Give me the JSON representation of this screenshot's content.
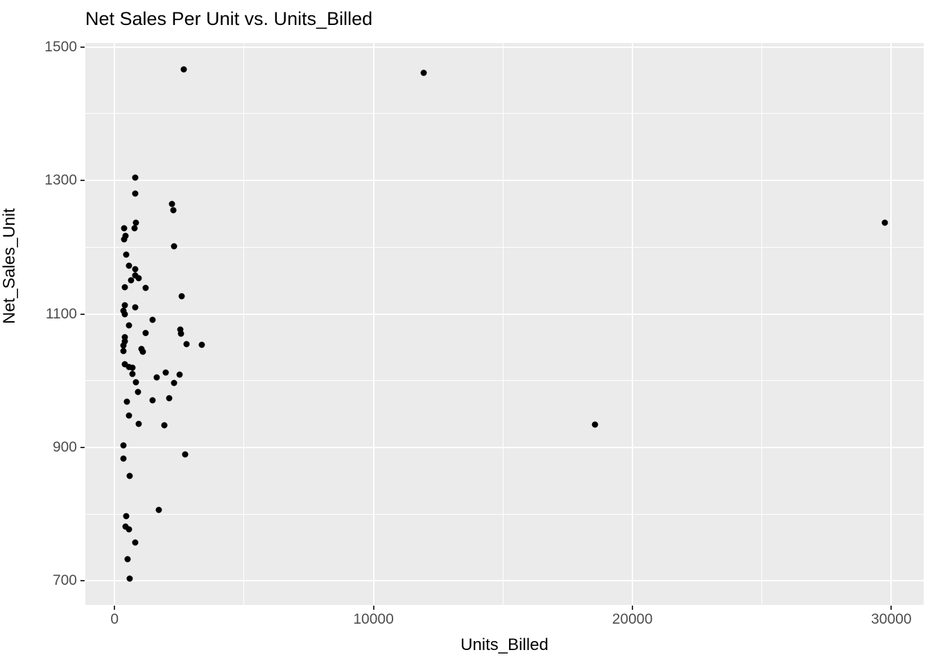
{
  "chart_data": {
    "type": "scatter",
    "title": "Net Sales Per Unit vs. Units_Billed",
    "xlabel": "Units_Billed",
    "ylabel": "Net_Sales_Unit",
    "xlim": [
      -1130,
      31250
    ],
    "ylim": [
      664,
      1506
    ],
    "x_major_ticks": [
      0,
      10000,
      20000,
      30000
    ],
    "x_major_tick_labels": [
      "0",
      "10000",
      "20000",
      "30000"
    ],
    "x_minor_ticks": [
      5000,
      15000,
      25000
    ],
    "y_major_ticks": [
      700,
      900,
      1100,
      1300,
      1500
    ],
    "y_major_tick_labels": [
      "700",
      "900",
      "1100",
      "1300",
      "1500"
    ],
    "y_minor_ticks": [
      800,
      1000,
      1200,
      1400
    ],
    "grid": true,
    "legend": false,
    "panel_bg_color": "#EBEBEB",
    "grid_color": "#FFFFFF",
    "point_color": "#000000",
    "tick_label_color": "#4D4D4D",
    "title_color": "#000000",
    "points": [
      [
        2670,
        1466
      ],
      [
        11930,
        1461
      ],
      [
        18560,
        934
      ],
      [
        29750,
        1237
      ],
      [
        790,
        1304
      ],
      [
        790,
        1280
      ],
      [
        2210,
        1265
      ],
      [
        2280,
        1255
      ],
      [
        830,
        1237
      ],
      [
        770,
        1228
      ],
      [
        375,
        1228
      ],
      [
        410,
        1217
      ],
      [
        365,
        1212
      ],
      [
        2300,
        1201
      ],
      [
        440,
        1189
      ],
      [
        545,
        1172
      ],
      [
        810,
        1167
      ],
      [
        810,
        1158
      ],
      [
        930,
        1154
      ],
      [
        635,
        1150
      ],
      [
        400,
        1140
      ],
      [
        1210,
        1139
      ],
      [
        2600,
        1127
      ],
      [
        385,
        1113
      ],
      [
        785,
        1110
      ],
      [
        355,
        1105
      ],
      [
        385,
        1100
      ],
      [
        1480,
        1091
      ],
      [
        560,
        1083
      ],
      [
        1210,
        1072
      ],
      [
        2545,
        1077
      ],
      [
        2570,
        1070
      ],
      [
        385,
        1065
      ],
      [
        385,
        1059
      ],
      [
        355,
        1053
      ],
      [
        2770,
        1055
      ],
      [
        3360,
        1054
      ],
      [
        1035,
        1048
      ],
      [
        340,
        1044
      ],
      [
        1080,
        1043
      ],
      [
        385,
        1025
      ],
      [
        560,
        1021
      ],
      [
        680,
        1020
      ],
      [
        700,
        1010
      ],
      [
        1635,
        1005
      ],
      [
        1975,
        1012
      ],
      [
        2510,
        1009
      ],
      [
        830,
        998
      ],
      [
        2285,
        997
      ],
      [
        905,
        983
      ],
      [
        475,
        969
      ],
      [
        1455,
        971
      ],
      [
        2110,
        974
      ],
      [
        545,
        948
      ],
      [
        920,
        935
      ],
      [
        1930,
        933
      ],
      [
        340,
        903
      ],
      [
        340,
        883
      ],
      [
        2725,
        890
      ],
      [
        590,
        857
      ],
      [
        1720,
        806
      ],
      [
        455,
        797
      ],
      [
        410,
        781
      ],
      [
        565,
        777
      ],
      [
        785,
        758
      ],
      [
        500,
        733
      ],
      [
        580,
        703
      ]
    ]
  }
}
